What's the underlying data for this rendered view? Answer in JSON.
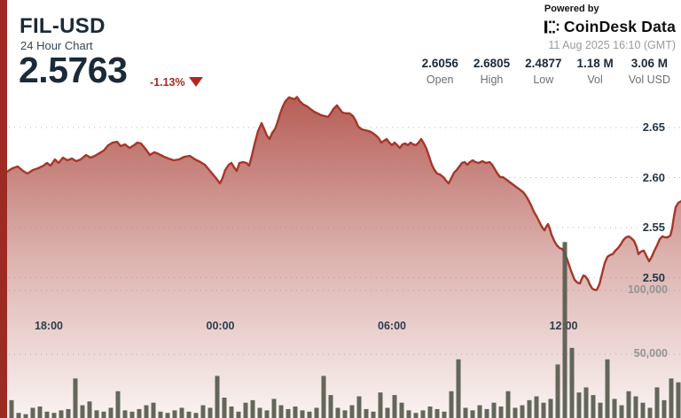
{
  "header": {
    "symbol": "FIL-USD",
    "subtitle": "24 Hour Chart",
    "price": "2.5763",
    "change": "-1.13%",
    "change_direction": "down",
    "powered_by": "Powered by",
    "brand": "CoinDesk Data",
    "timestamp": "11 Aug 2025 16:10 (GMT)",
    "stats": [
      {
        "value": "2.6056",
        "label": "Open"
      },
      {
        "value": "2.6805",
        "label": "High"
      },
      {
        "value": "2.4877",
        "label": "Low"
      },
      {
        "value": "1.18 M",
        "label": "Vol"
      },
      {
        "value": "3.06 M",
        "label": "Vol USD"
      }
    ]
  },
  "colors": {
    "accent_stripe": "#9c2b23",
    "line": "#a5372b",
    "area_base": "#a4362c",
    "change_red": "#a8281f",
    "triangle_red": "#b3281e",
    "navy_text": "#1b2a38",
    "volume_bar": "#565b4d",
    "gridline": "#8a9096",
    "gray_label": "#949494"
  },
  "chart_data": {
    "type": "area",
    "title": "FIL-USD 24 Hour Chart",
    "legend": "none",
    "grid": "dotted-horizontal",
    "price_axis": {
      "side": "right",
      "ticks": [
        2.65,
        2.6,
        2.55,
        2.5
      ],
      "ylim": [
        2.47,
        2.7
      ]
    },
    "volume_axis": {
      "ticks": [
        {
          "label": "100,000",
          "value": 100
        },
        {
          "label": "50,000",
          "value": 50
        }
      ]
    },
    "time_axis": {
      "ticks": [
        "18:00",
        "00:00",
        "06:00",
        "12:00"
      ]
    },
    "summary": {
      "open": 2.6056,
      "high": 2.6805,
      "low": 2.4877,
      "last": 2.5763,
      "change_pct": -1.13,
      "vol": "1.18 M",
      "vol_usd": "3.06 M"
    },
    "price_points": [
      [
        8,
        2.6058
      ],
      [
        14,
        2.6093
      ],
      [
        20,
        2.6111
      ],
      [
        26,
        2.6066
      ],
      [
        31,
        2.604
      ],
      [
        37,
        2.6075
      ],
      [
        43,
        2.6093
      ],
      [
        49,
        2.6119
      ],
      [
        53,
        2.6146
      ],
      [
        57,
        2.6119
      ],
      [
        62,
        2.6181
      ],
      [
        66,
        2.6146
      ],
      [
        71,
        2.6199
      ],
      [
        76,
        2.6173
      ],
      [
        81,
        2.619
      ],
      [
        86,
        2.6164
      ],
      [
        91,
        2.6181
      ],
      [
        97,
        2.6226
      ],
      [
        102,
        2.6199
      ],
      [
        107,
        2.6217
      ],
      [
        112,
        2.6243
      ],
      [
        117,
        2.627
      ],
      [
        122,
        2.6323
      ],
      [
        127,
        2.635
      ],
      [
        132,
        2.6358
      ],
      [
        136,
        2.6314
      ],
      [
        141,
        2.6332
      ],
      [
        146,
        2.6296
      ],
      [
        151,
        2.6323
      ],
      [
        155,
        2.635
      ],
      [
        159,
        2.6341
      ],
      [
        164,
        2.6288
      ],
      [
        169,
        2.6226
      ],
      [
        174,
        2.6253
      ],
      [
        179,
        2.6235
      ],
      [
        185,
        2.6208
      ],
      [
        190,
        2.619
      ],
      [
        196,
        2.6173
      ],
      [
        202,
        2.6181
      ],
      [
        208,
        2.6208
      ],
      [
        214,
        2.6217
      ],
      [
        220,
        2.6181
      ],
      [
        226,
        2.6155
      ],
      [
        231,
        2.6128
      ],
      [
        236,
        2.6075
      ],
      [
        241,
        2.6022
      ],
      [
        245,
        2.5978
      ],
      [
        248,
        2.5942
      ],
      [
        251,
        2.5996
      ],
      [
        254,
        2.6075
      ],
      [
        258,
        2.6128
      ],
      [
        261,
        2.6146
      ],
      [
        264,
        2.6102
      ],
      [
        267,
        2.6066
      ],
      [
        270,
        2.6146
      ],
      [
        274,
        2.6155
      ],
      [
        278,
        2.6146
      ],
      [
        281,
        2.6119
      ],
      [
        284,
        2.6217
      ],
      [
        287,
        2.6332
      ],
      [
        291,
        2.6465
      ],
      [
        295,
        2.6544
      ],
      [
        298,
        2.6482
      ],
      [
        301,
        2.642
      ],
      [
        304,
        2.6385
      ],
      [
        307,
        2.6447
      ],
      [
        310,
        2.6482
      ],
      [
        313,
        2.6553
      ],
      [
        316,
        2.6642
      ],
      [
        319,
        2.6712
      ],
      [
        322,
        2.6765
      ],
      [
        326,
        2.6801
      ],
      [
        329,
        2.6792
      ],
      [
        332,
        2.6783
      ],
      [
        335,
        2.6805
      ],
      [
        338,
        2.6765
      ],
      [
        342,
        2.673
      ],
      [
        346,
        2.6712
      ],
      [
        350,
        2.6686
      ],
      [
        354,
        2.6659
      ],
      [
        358,
        2.6642
      ],
      [
        362,
        2.6624
      ],
      [
        366,
        2.6615
      ],
      [
        370,
        2.6606
      ],
      [
        373,
        2.6642
      ],
      [
        376,
        2.6686
      ],
      [
        380,
        2.6721
      ],
      [
        383,
        2.6686
      ],
      [
        386,
        2.665
      ],
      [
        390,
        2.6642
      ],
      [
        394,
        2.6642
      ],
      [
        398,
        2.6615
      ],
      [
        401,
        2.6571
      ],
      [
        404,
        2.6509
      ],
      [
        408,
        2.6482
      ],
      [
        412,
        2.6473
      ],
      [
        416,
        2.6465
      ],
      [
        420,
        2.6447
      ],
      [
        424,
        2.642
      ],
      [
        427,
        2.6394
      ],
      [
        430,
        2.635
      ],
      [
        433,
        2.6367
      ],
      [
        436,
        2.6385
      ],
      [
        439,
        2.635
      ],
      [
        442,
        2.6323
      ],
      [
        445,
        2.635
      ],
      [
        448,
        2.6323
      ],
      [
        451,
        2.6296
      ],
      [
        454,
        2.6332
      ],
      [
        457,
        2.6341
      ],
      [
        460,
        2.6323
      ],
      [
        463,
        2.635
      ],
      [
        466,
        2.6332
      ],
      [
        469,
        2.6323
      ],
      [
        472,
        2.635
      ],
      [
        475,
        2.6385
      ],
      [
        478,
        2.6341
      ],
      [
        481,
        2.6288
      ],
      [
        484,
        2.6208
      ],
      [
        487,
        2.6128
      ],
      [
        490,
        2.6075
      ],
      [
        493,
        2.604
      ],
      [
        496,
        2.6031
      ],
      [
        500,
        2.6004
      ],
      [
        503,
        2.5969
      ],
      [
        506,
        2.5942
      ],
      [
        509,
        2.5996
      ],
      [
        512,
        2.6049
      ],
      [
        515,
        2.6075
      ],
      [
        518,
        2.6111
      ],
      [
        521,
        2.6146
      ],
      [
        524,
        2.6155
      ],
      [
        527,
        2.6128
      ],
      [
        530,
        2.6155
      ],
      [
        533,
        2.6173
      ],
      [
        536,
        2.6155
      ],
      [
        540,
        2.6146
      ],
      [
        544,
        2.6164
      ],
      [
        548,
        2.6146
      ],
      [
        552,
        2.6155
      ],
      [
        555,
        2.6128
      ],
      [
        558,
        2.6084
      ],
      [
        561,
        2.604
      ],
      [
        564,
        2.6004
      ],
      [
        567,
        2.6004
      ],
      [
        570,
        2.5987
      ],
      [
        574,
        2.596
      ],
      [
        578,
        2.5934
      ],
      [
        582,
        2.5907
      ],
      [
        586,
        2.5881
      ],
      [
        590,
        2.5854
      ],
      [
        593,
        2.5819
      ],
      [
        596,
        2.5774
      ],
      [
        599,
        2.5721
      ],
      [
        602,
        2.5659
      ],
      [
        605,
        2.5615
      ],
      [
        608,
        2.5562
      ],
      [
        611,
        2.5509
      ],
      [
        614,
        2.5473
      ],
      [
        616,
        2.5509
      ],
      [
        618,
        2.5535
      ],
      [
        620,
        2.5491
      ],
      [
        622,
        2.5429
      ],
      [
        625,
        2.5367
      ],
      [
        628,
        2.5323
      ],
      [
        631,
        2.5296
      ],
      [
        634,
        2.5287
      ],
      [
        637,
        2.5243
      ],
      [
        640,
        2.5173
      ],
      [
        643,
        2.5093
      ],
      [
        646,
        2.5022
      ],
      [
        648,
        2.4978
      ],
      [
        651,
        2.4951
      ],
      [
        654,
        2.4942
      ],
      [
        656,
        2.4987
      ],
      [
        658,
        2.5022
      ],
      [
        660,
        2.5013
      ],
      [
        663,
        2.4978
      ],
      [
        665,
        2.4934
      ],
      [
        668,
        2.4889
      ],
      [
        671,
        2.4877
      ],
      [
        673,
        2.4877
      ],
      [
        676,
        2.4934
      ],
      [
        679,
        2.504
      ],
      [
        682,
        2.5146
      ],
      [
        685,
        2.5208
      ],
      [
        688,
        2.5226
      ],
      [
        691,
        2.5235
      ],
      [
        694,
        2.527
      ],
      [
        697,
        2.5296
      ],
      [
        700,
        2.5332
      ],
      [
        703,
        2.5376
      ],
      [
        706,
        2.5403
      ],
      [
        709,
        2.5412
      ],
      [
        712,
        2.5394
      ],
      [
        715,
        2.5367
      ],
      [
        718,
        2.5305
      ],
      [
        720,
        2.5235
      ],
      [
        723,
        2.5261
      ],
      [
        726,
        2.527
      ],
      [
        729,
        2.5217
      ],
      [
        732,
        2.5164
      ],
      [
        735,
        2.5208
      ],
      [
        738,
        2.527
      ],
      [
        741,
        2.5323
      ],
      [
        744,
        2.5385
      ],
      [
        747,
        2.5412
      ],
      [
        750,
        2.5403
      ],
      [
        753,
        2.5403
      ],
      [
        756,
        2.5421
      ],
      [
        758,
        2.5492
      ],
      [
        760,
        2.5607
      ],
      [
        762,
        2.5704
      ],
      [
        765,
        2.5748
      ],
      [
        768,
        2.5763
      ]
    ],
    "volume_bars_k": [
      [
        13,
        14
      ],
      [
        21,
        4
      ],
      [
        29,
        3
      ],
      [
        37,
        8
      ],
      [
        45,
        9
      ],
      [
        53,
        5
      ],
      [
        61,
        4
      ],
      [
        69,
        6
      ],
      [
        77,
        7
      ],
      [
        85,
        31
      ],
      [
        93,
        10
      ],
      [
        101,
        13
      ],
      [
        109,
        6
      ],
      [
        117,
        5
      ],
      [
        125,
        8
      ],
      [
        133,
        21
      ],
      [
        141,
        6
      ],
      [
        149,
        5
      ],
      [
        157,
        7
      ],
      [
        165,
        10
      ],
      [
        173,
        12
      ],
      [
        181,
        5
      ],
      [
        189,
        4
      ],
      [
        197,
        6
      ],
      [
        205,
        8
      ],
      [
        213,
        5
      ],
      [
        221,
        4
      ],
      [
        229,
        10
      ],
      [
        237,
        8
      ],
      [
        245,
        33
      ],
      [
        253,
        16
      ],
      [
        261,
        9
      ],
      [
        269,
        5
      ],
      [
        277,
        12
      ],
      [
        285,
        14
      ],
      [
        293,
        8
      ],
      [
        301,
        6
      ],
      [
        309,
        15
      ],
      [
        317,
        10
      ],
      [
        325,
        7
      ],
      [
        333,
        9
      ],
      [
        341,
        6
      ],
      [
        349,
        5
      ],
      [
        357,
        8
      ],
      [
        365,
        33
      ],
      [
        373,
        18
      ],
      [
        381,
        8
      ],
      [
        389,
        6
      ],
      [
        397,
        10
      ],
      [
        405,
        17
      ],
      [
        413,
        7
      ],
      [
        421,
        5
      ],
      [
        429,
        20
      ],
      [
        437,
        8
      ],
      [
        445,
        18
      ],
      [
        453,
        12
      ],
      [
        461,
        6
      ],
      [
        469,
        4
      ],
      [
        477,
        6
      ],
      [
        485,
        9
      ],
      [
        493,
        7
      ],
      [
        501,
        5
      ],
      [
        509,
        21
      ],
      [
        517,
        46
      ],
      [
        525,
        8
      ],
      [
        533,
        6
      ],
      [
        541,
        10
      ],
      [
        549,
        7
      ],
      [
        557,
        12
      ],
      [
        565,
        9
      ],
      [
        573,
        21
      ],
      [
        581,
        8
      ],
      [
        589,
        10
      ],
      [
        597,
        14
      ],
      [
        605,
        17
      ],
      [
        613,
        12
      ],
      [
        621,
        15
      ],
      [
        629,
        42
      ],
      [
        637,
        138
      ],
      [
        645,
        55
      ],
      [
        653,
        20
      ],
      [
        661,
        24
      ],
      [
        669,
        18
      ],
      [
        677,
        12
      ],
      [
        685,
        46
      ],
      [
        693,
        15
      ],
      [
        701,
        10
      ],
      [
        709,
        21
      ],
      [
        717,
        17
      ],
      [
        725,
        12
      ],
      [
        733,
        8
      ],
      [
        741,
        24
      ],
      [
        749,
        14
      ],
      [
        757,
        31
      ],
      [
        765,
        28
      ]
    ]
  }
}
